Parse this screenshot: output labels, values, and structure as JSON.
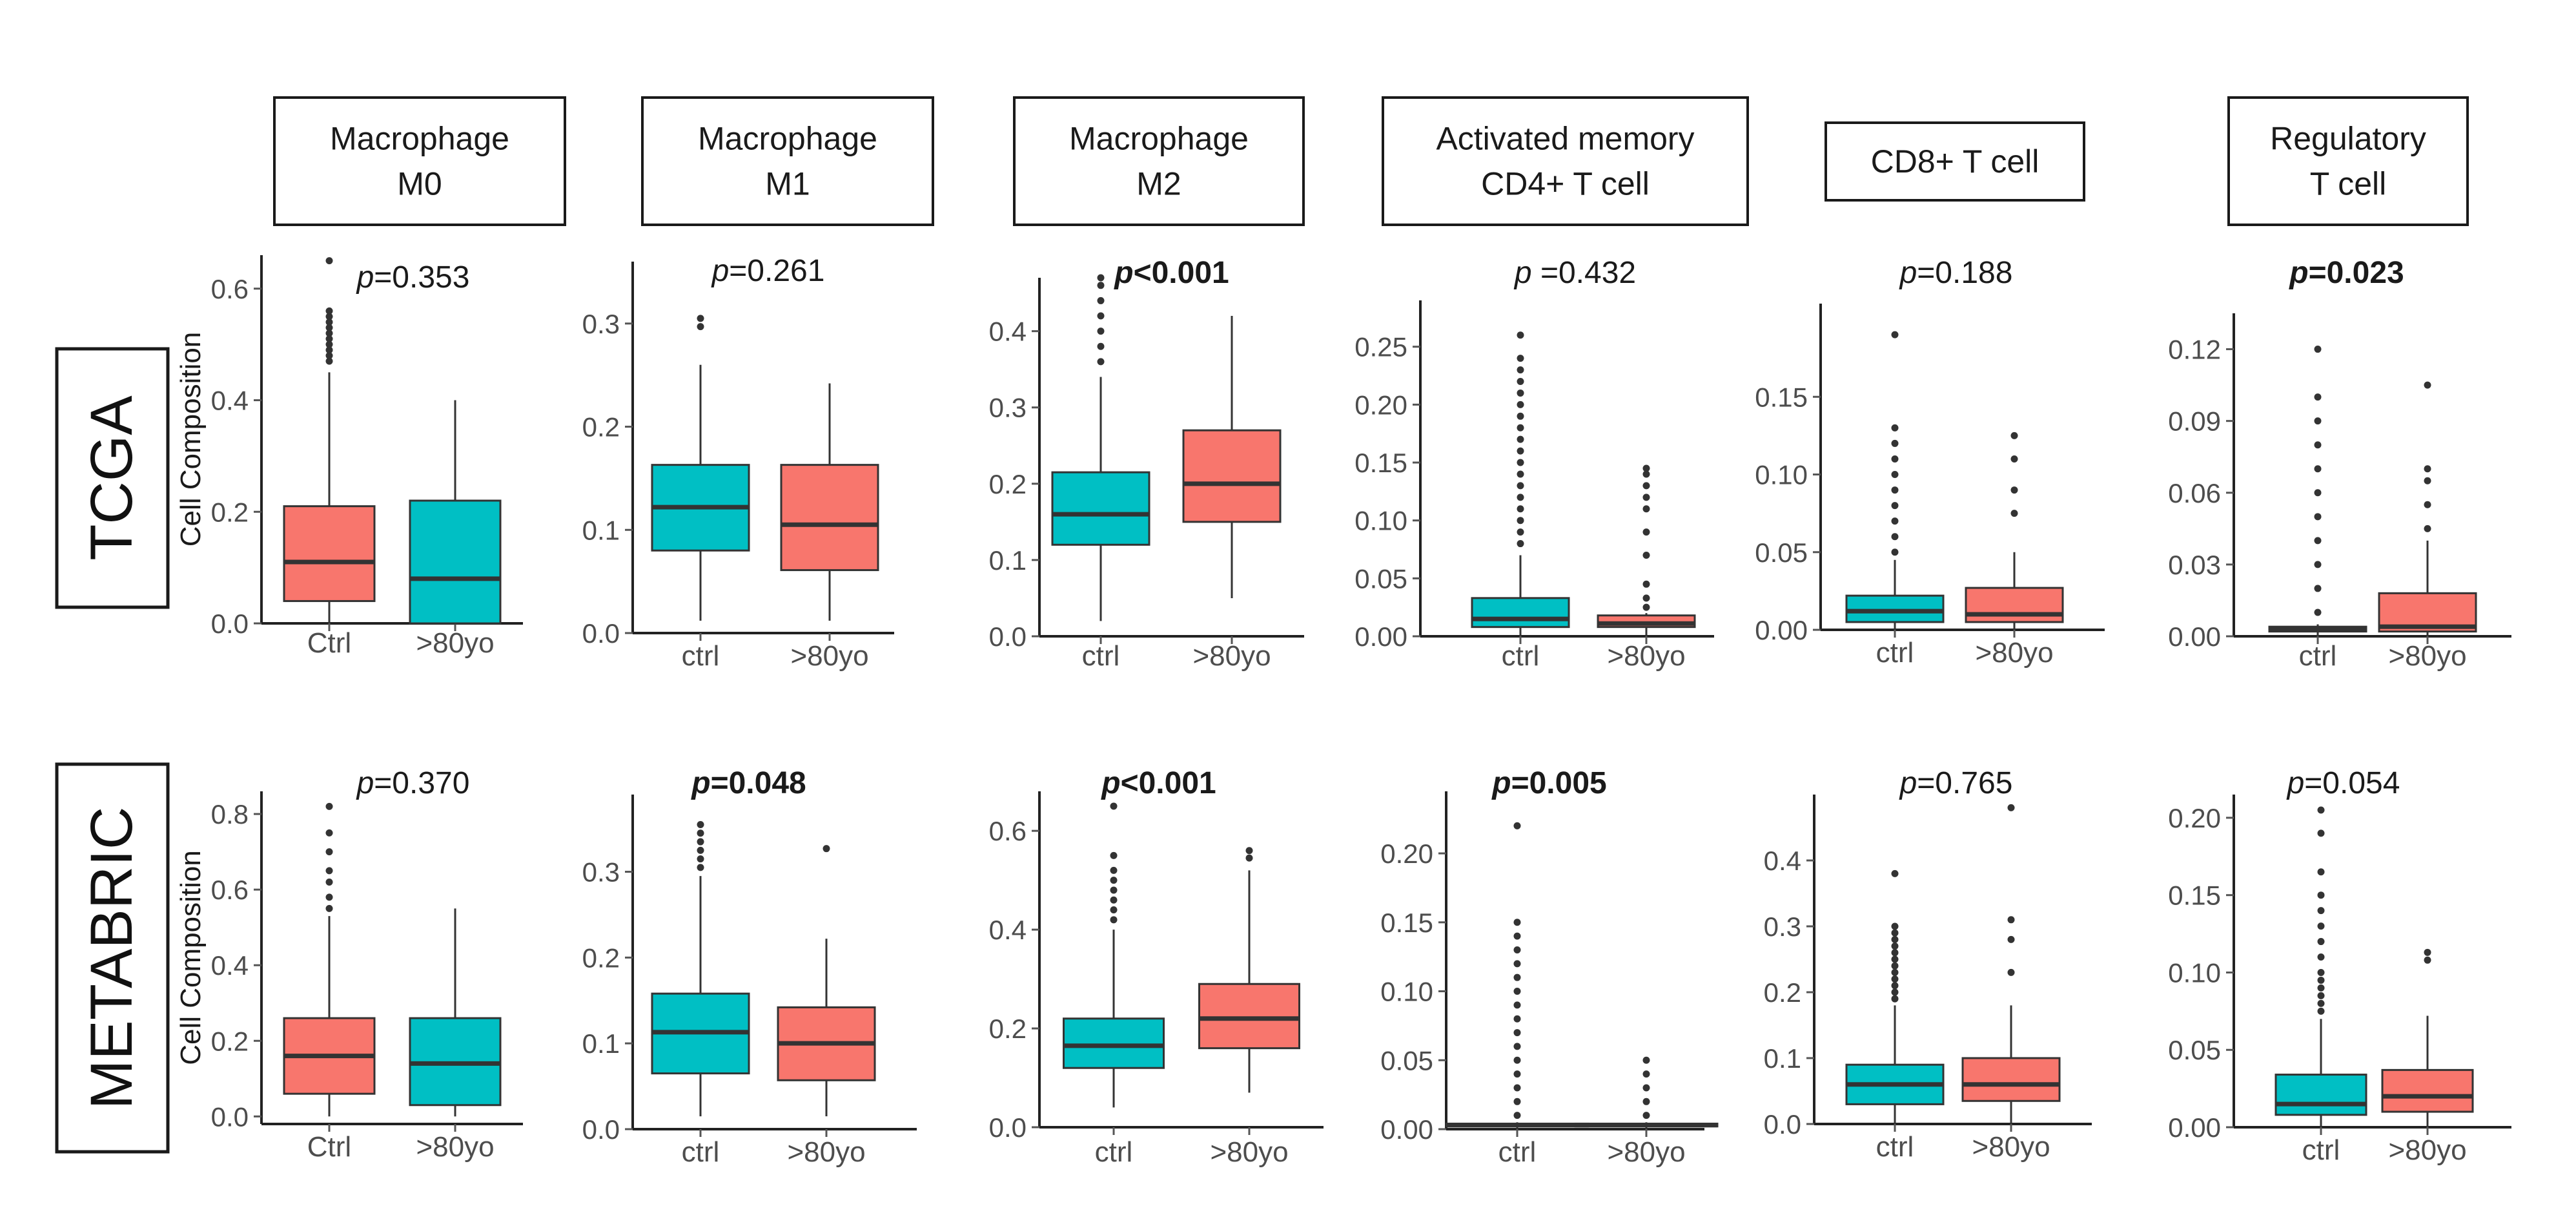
{
  "colors": {
    "teal": "#00bfc4",
    "salmon": "#f8766d",
    "ink": "#333333"
  },
  "headers": [
    {
      "lines": [
        "Macrophage",
        "M0"
      ]
    },
    {
      "lines": [
        "Macrophage",
        "M1"
      ]
    },
    {
      "lines": [
        "Macrophage",
        "M2"
      ]
    },
    {
      "lines": [
        "Activated memory",
        "CD4+ T cell"
      ]
    },
    {
      "lines": [
        "CD8+ T cell"
      ]
    },
    {
      "lines": [
        "Regulatory",
        "T cell"
      ]
    }
  ],
  "rows": [
    {
      "label": "TCGA"
    },
    {
      "label": "METABRIC"
    }
  ],
  "ylabel": "Cell Composition",
  "chart_data": [
    {
      "type": "boxplot",
      "dataset": "TCGA",
      "cell_type": "Macrophage M0",
      "ylabel": "Cell Composition",
      "p_prefix": "p",
      "p_value": "=0.353",
      "p_bold": false,
      "ylim": [
        0,
        0.66
      ],
      "yticks": [
        "0.0",
        "0.2",
        "0.4",
        "0.6"
      ],
      "ytick_values": [
        0,
        0.2,
        0.4,
        0.6
      ],
      "categories": [
        "Ctrl",
        ">80yo"
      ],
      "boxes": [
        {
          "color": "salmon",
          "min": 0.0,
          "q1": 0.04,
          "median": 0.11,
          "q3": 0.21,
          "max": 0.45,
          "outliers": [
            0.47,
            0.48,
            0.49,
            0.5,
            0.51,
            0.52,
            0.53,
            0.54,
            0.55,
            0.56,
            0.65
          ]
        },
        {
          "color": "teal",
          "min": 0.0,
          "q1": 0.0,
          "median": 0.08,
          "q3": 0.22,
          "max": 0.4,
          "outliers": []
        }
      ]
    },
    {
      "type": "boxplot",
      "dataset": "TCGA",
      "cell_type": "Macrophage M1",
      "ylabel": "",
      "p_prefix": "p",
      "p_value": "=0.261",
      "p_bold": false,
      "ylim": [
        0,
        0.36
      ],
      "yticks": [
        "0.0",
        "0.1",
        "0.2",
        "0.3"
      ],
      "ytick_values": [
        0,
        0.1,
        0.2,
        0.3
      ],
      "categories": [
        "ctrl",
        ">80yo"
      ],
      "boxes": [
        {
          "color": "teal",
          "min": 0.012,
          "q1": 0.08,
          "median": 0.122,
          "q3": 0.163,
          "max": 0.26,
          "outliers": [
            0.297,
            0.305
          ]
        },
        {
          "color": "salmon",
          "min": 0.012,
          "q1": 0.061,
          "median": 0.105,
          "q3": 0.163,
          "max": 0.242,
          "outliers": []
        }
      ]
    },
    {
      "type": "boxplot",
      "dataset": "TCGA",
      "cell_type": "Macrophage M2",
      "ylabel": "",
      "p_prefix": "p",
      "p_value": "<0.001",
      "p_bold": true,
      "ylim": [
        0,
        0.47
      ],
      "yticks": [
        "0.0",
        "0.1",
        "0.2",
        "0.3",
        "0.4"
      ],
      "ytick_values": [
        0,
        0.1,
        0.2,
        0.3,
        0.4
      ],
      "categories": [
        "ctrl",
        ">80yo"
      ],
      "boxes": [
        {
          "color": "teal",
          "min": 0.02,
          "q1": 0.12,
          "median": 0.16,
          "q3": 0.215,
          "max": 0.34,
          "outliers": [
            0.36,
            0.38,
            0.4,
            0.42,
            0.44,
            0.46,
            0.47
          ]
        },
        {
          "color": "salmon",
          "min": 0.05,
          "q1": 0.15,
          "median": 0.2,
          "q3": 0.27,
          "max": 0.42,
          "outliers": []
        }
      ]
    },
    {
      "type": "boxplot",
      "dataset": "TCGA",
      "cell_type": "Activated memory CD4+ T cell",
      "ylabel": "",
      "p_prefix": "p ",
      "p_value": "=0.432",
      "p_bold": false,
      "ylim": [
        0,
        0.29
      ],
      "yticks": [
        "0.00",
        "0.05",
        "0.10",
        "0.15",
        "0.20",
        "0.25"
      ],
      "ytick_values": [
        0,
        0.05,
        0.1,
        0.15,
        0.2,
        0.25
      ],
      "categories": [
        "ctrl",
        ">80yo"
      ],
      "boxes": [
        {
          "color": "teal",
          "min": 0.0,
          "q1": 0.008,
          "median": 0.015,
          "q3": 0.033,
          "max": 0.07,
          "outliers": [
            0.08,
            0.09,
            0.1,
            0.11,
            0.12,
            0.13,
            0.14,
            0.15,
            0.16,
            0.17,
            0.18,
            0.19,
            0.2,
            0.21,
            0.22,
            0.23,
            0.24,
            0.26
          ]
        },
        {
          "color": "salmon",
          "min": 0.0,
          "q1": 0.008,
          "median": 0.011,
          "q3": 0.018,
          "max": 0.02,
          "outliers": [
            0.025,
            0.033,
            0.045,
            0.07,
            0.09,
            0.11,
            0.12,
            0.13,
            0.14,
            0.145
          ]
        }
      ]
    },
    {
      "type": "boxplot",
      "dataset": "TCGA",
      "cell_type": "CD8+ T cell",
      "ylabel": "",
      "p_prefix": "p",
      "p_value": "=0.188",
      "p_bold": false,
      "ylim": [
        0,
        0.21
      ],
      "yticks": [
        "0.00",
        "0.05",
        "0.10",
        "0.15"
      ],
      "ytick_values": [
        0,
        0.05,
        0.1,
        0.15
      ],
      "categories": [
        "ctrl",
        ">80yo"
      ],
      "boxes": [
        {
          "color": "teal",
          "min": 0.0,
          "q1": 0.005,
          "median": 0.012,
          "q3": 0.022,
          "max": 0.045,
          "outliers": [
            0.05,
            0.06,
            0.07,
            0.08,
            0.09,
            0.1,
            0.11,
            0.12,
            0.13,
            0.19
          ]
        },
        {
          "color": "salmon",
          "min": 0.0,
          "q1": 0.005,
          "median": 0.01,
          "q3": 0.027,
          "max": 0.05,
          "outliers": [
            0.075,
            0.09,
            0.11,
            0.125
          ]
        }
      ]
    },
    {
      "type": "boxplot",
      "dataset": "TCGA",
      "cell_type": "Regulatory T cell",
      "ylabel": "",
      "p_prefix": "p",
      "p_value": "=0.023",
      "p_bold": true,
      "ylim": [
        0,
        0.135
      ],
      "yticks": [
        "0.00",
        "0.03",
        "0.06",
        "0.09",
        "0.12"
      ],
      "ytick_values": [
        0,
        0.03,
        0.06,
        0.09,
        0.12
      ],
      "categories": [
        "ctrl",
        ">80yo"
      ],
      "boxes": [
        {
          "color": "teal",
          "min": 0.0,
          "q1": 0.002,
          "median": 0.003,
          "q3": 0.004,
          "max": 0.005,
          "outliers": [
            0.01,
            0.02,
            0.03,
            0.04,
            0.05,
            0.06,
            0.07,
            0.08,
            0.09,
            0.1,
            0.12
          ]
        },
        {
          "color": "salmon",
          "min": 0.0,
          "q1": 0.002,
          "median": 0.004,
          "q3": 0.018,
          "max": 0.04,
          "outliers": [
            0.045,
            0.055,
            0.065,
            0.07,
            0.105
          ]
        }
      ]
    },
    {
      "type": "boxplot",
      "dataset": "METABRIC",
      "cell_type": "Macrophage M0",
      "ylabel": "Cell Composition",
      "p_prefix": "p",
      "p_value": "=0.370",
      "p_bold": false,
      "ylim": [
        -0.02,
        0.86
      ],
      "yticks": [
        "0.0",
        "0.2",
        "0.4",
        "0.6",
        "0.8"
      ],
      "ytick_values": [
        0,
        0.2,
        0.4,
        0.6,
        0.8
      ],
      "categories": [
        "Ctrl",
        ">80yo"
      ],
      "boxes": [
        {
          "color": "salmon",
          "min": 0.0,
          "q1": 0.06,
          "median": 0.16,
          "q3": 0.26,
          "max": 0.53,
          "outliers": [
            0.55,
            0.58,
            0.62,
            0.65,
            0.7,
            0.75,
            0.82
          ]
        },
        {
          "color": "teal",
          "min": 0.0,
          "q1": 0.03,
          "median": 0.14,
          "q3": 0.26,
          "max": 0.55,
          "outliers": []
        }
      ]
    },
    {
      "type": "boxplot",
      "dataset": "METABRIC",
      "cell_type": "Macrophage M1",
      "ylabel": "",
      "p_prefix": "p",
      "p_value": "=0.048",
      "p_bold": true,
      "ylim": [
        0,
        0.39
      ],
      "yticks": [
        "0.0",
        "0.1",
        "0.2",
        "0.3"
      ],
      "ytick_values": [
        0,
        0.1,
        0.2,
        0.3
      ],
      "categories": [
        "ctrl",
        ">80yo"
      ],
      "boxes": [
        {
          "color": "teal",
          "min": 0.015,
          "q1": 0.065,
          "median": 0.113,
          "q3": 0.158,
          "max": 0.295,
          "outliers": [
            0.305,
            0.315,
            0.325,
            0.335,
            0.345,
            0.355
          ]
        },
        {
          "color": "salmon",
          "min": 0.015,
          "q1": 0.057,
          "median": 0.1,
          "q3": 0.142,
          "max": 0.222,
          "outliers": [
            0.327
          ]
        }
      ]
    },
    {
      "type": "boxplot",
      "dataset": "METABRIC",
      "cell_type": "Macrophage M2",
      "ylabel": "",
      "p_prefix": "p",
      "p_value": "<0.001",
      "p_bold": true,
      "ylim": [
        0,
        0.68
      ],
      "yticks": [
        "0.0",
        "0.2",
        "0.4",
        "0.6"
      ],
      "ytick_values": [
        0,
        0.2,
        0.4,
        0.6
      ],
      "categories": [
        "ctrl",
        ">80yo"
      ],
      "boxes": [
        {
          "color": "teal",
          "min": 0.04,
          "q1": 0.12,
          "median": 0.165,
          "q3": 0.22,
          "max": 0.4,
          "outliers": [
            0.42,
            0.44,
            0.46,
            0.48,
            0.5,
            0.52,
            0.55,
            0.65
          ]
        },
        {
          "color": "salmon",
          "min": 0.07,
          "q1": 0.16,
          "median": 0.22,
          "q3": 0.29,
          "max": 0.52,
          "outliers": [
            0.545,
            0.56
          ]
        }
      ]
    },
    {
      "type": "boxplot",
      "dataset": "METABRIC",
      "cell_type": "Activated memory CD4+ T cell",
      "ylabel": "",
      "p_prefix": "p",
      "p_value": "=0.005",
      "p_bold": true,
      "ylim": [
        0,
        0.245
      ],
      "yticks": [
        "0.00",
        "0.05",
        "0.10",
        "0.15",
        "0.20"
      ],
      "ytick_values": [
        0,
        0.05,
        0.1,
        0.15,
        0.2
      ],
      "categories": [
        "ctrl",
        ">80yo"
      ],
      "boxes": [
        {
          "color": "teal",
          "min": 0.0,
          "q1": 0.002,
          "median": 0.003,
          "q3": 0.004,
          "max": 0.005,
          "outliers": [
            0.01,
            0.02,
            0.03,
            0.04,
            0.05,
            0.06,
            0.07,
            0.08,
            0.09,
            0.1,
            0.11,
            0.12,
            0.13,
            0.14,
            0.15,
            0.22
          ]
        },
        {
          "color": "salmon",
          "min": 0.0,
          "q1": 0.002,
          "median": 0.003,
          "q3": 0.004,
          "max": 0.005,
          "outliers": [
            0.01,
            0.02,
            0.03,
            0.04,
            0.05
          ]
        }
      ]
    },
    {
      "type": "boxplot",
      "dataset": "METABRIC",
      "cell_type": "CD8+ T cell",
      "ylabel": "",
      "p_prefix": "p",
      "p_value": "=0.765",
      "p_bold": false,
      "ylim": [
        0,
        0.5
      ],
      "yticks": [
        "0.0",
        "0.1",
        "0.2",
        "0.3",
        "0.4"
      ],
      "ytick_values": [
        0,
        0.1,
        0.2,
        0.3,
        0.4
      ],
      "categories": [
        "ctrl",
        ">80yo"
      ],
      "boxes": [
        {
          "color": "teal",
          "min": 0.0,
          "q1": 0.03,
          "median": 0.06,
          "q3": 0.09,
          "max": 0.18,
          "outliers": [
            0.19,
            0.2,
            0.21,
            0.22,
            0.23,
            0.24,
            0.25,
            0.26,
            0.27,
            0.28,
            0.29,
            0.3,
            0.38
          ]
        },
        {
          "color": "salmon",
          "min": 0.0,
          "q1": 0.035,
          "median": 0.06,
          "q3": 0.1,
          "max": 0.18,
          "outliers": [
            0.23,
            0.28,
            0.31,
            0.48
          ]
        }
      ]
    },
    {
      "type": "boxplot",
      "dataset": "METABRIC",
      "cell_type": "Regulatory T cell",
      "ylabel": "",
      "p_prefix": "p",
      "p_value": "=0.054",
      "p_bold": false,
      "ylim": [
        0,
        0.215
      ],
      "yticks": [
        "0.00",
        "0.05",
        "0.10",
        "0.15",
        "0.20"
      ],
      "ytick_values": [
        0,
        0.05,
        0.1,
        0.15,
        0.2
      ],
      "categories": [
        "ctrl",
        ">80yo"
      ],
      "boxes": [
        {
          "color": "teal",
          "min": 0.0,
          "q1": 0.008,
          "median": 0.015,
          "q3": 0.034,
          "max": 0.07,
          "outliers": [
            0.075,
            0.08,
            0.085,
            0.09,
            0.095,
            0.1,
            0.11,
            0.12,
            0.13,
            0.14,
            0.15,
            0.165,
            0.19,
            0.205
          ]
        },
        {
          "color": "salmon",
          "min": 0.0,
          "q1": 0.01,
          "median": 0.02,
          "q3": 0.037,
          "max": 0.072,
          "outliers": [
            0.108,
            0.113
          ]
        }
      ]
    }
  ]
}
